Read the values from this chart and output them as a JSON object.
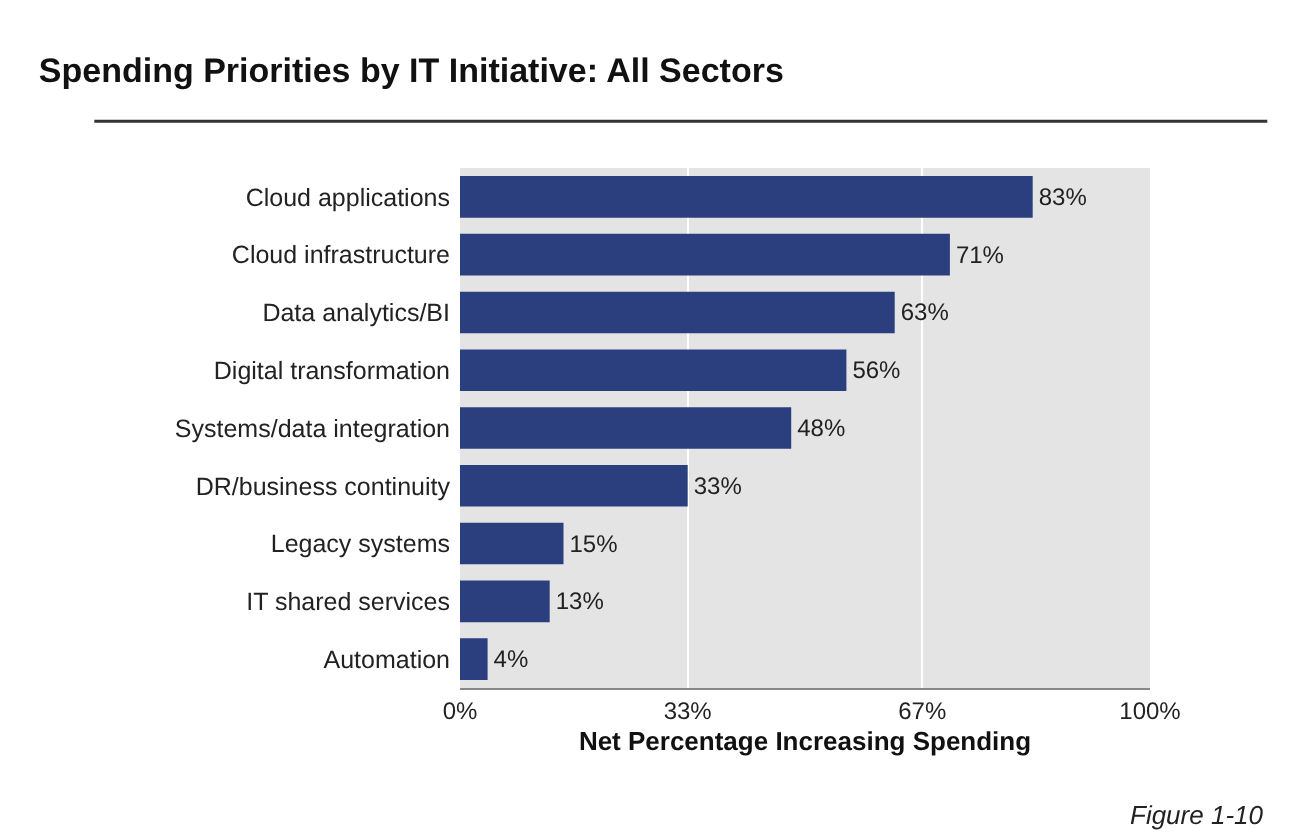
{
  "chart_data": {
    "type": "bar",
    "orientation": "horizontal",
    "title": "Spending Priorities by IT Initiative: All Sectors",
    "xlabel": "Net Percentage Increasing Spending",
    "categories": [
      "Cloud applications",
      "Cloud infrastructure",
      "Data analytics/BI",
      "Digital transformation",
      "Systems/data integration",
      "DR/business continuity",
      "Legacy systems",
      "IT shared services",
      "Automation"
    ],
    "values": [
      83,
      71,
      63,
      56,
      48,
      33,
      15,
      13,
      4
    ],
    "value_labels": [
      "83%",
      "71%",
      "63%",
      "56%",
      "48%",
      "33%",
      "15%",
      "13%",
      "4%"
    ],
    "color": "#2b3f7f",
    "xlim": [
      0,
      100
    ],
    "xticks": [
      {
        "value": 0,
        "label": "0%"
      },
      {
        "value": 33,
        "label": "33%"
      },
      {
        "value": 67,
        "label": "67%"
      },
      {
        "value": 100,
        "label": "100%"
      }
    ],
    "grid": "x",
    "annotations": [
      "Figure 1-10"
    ]
  }
}
